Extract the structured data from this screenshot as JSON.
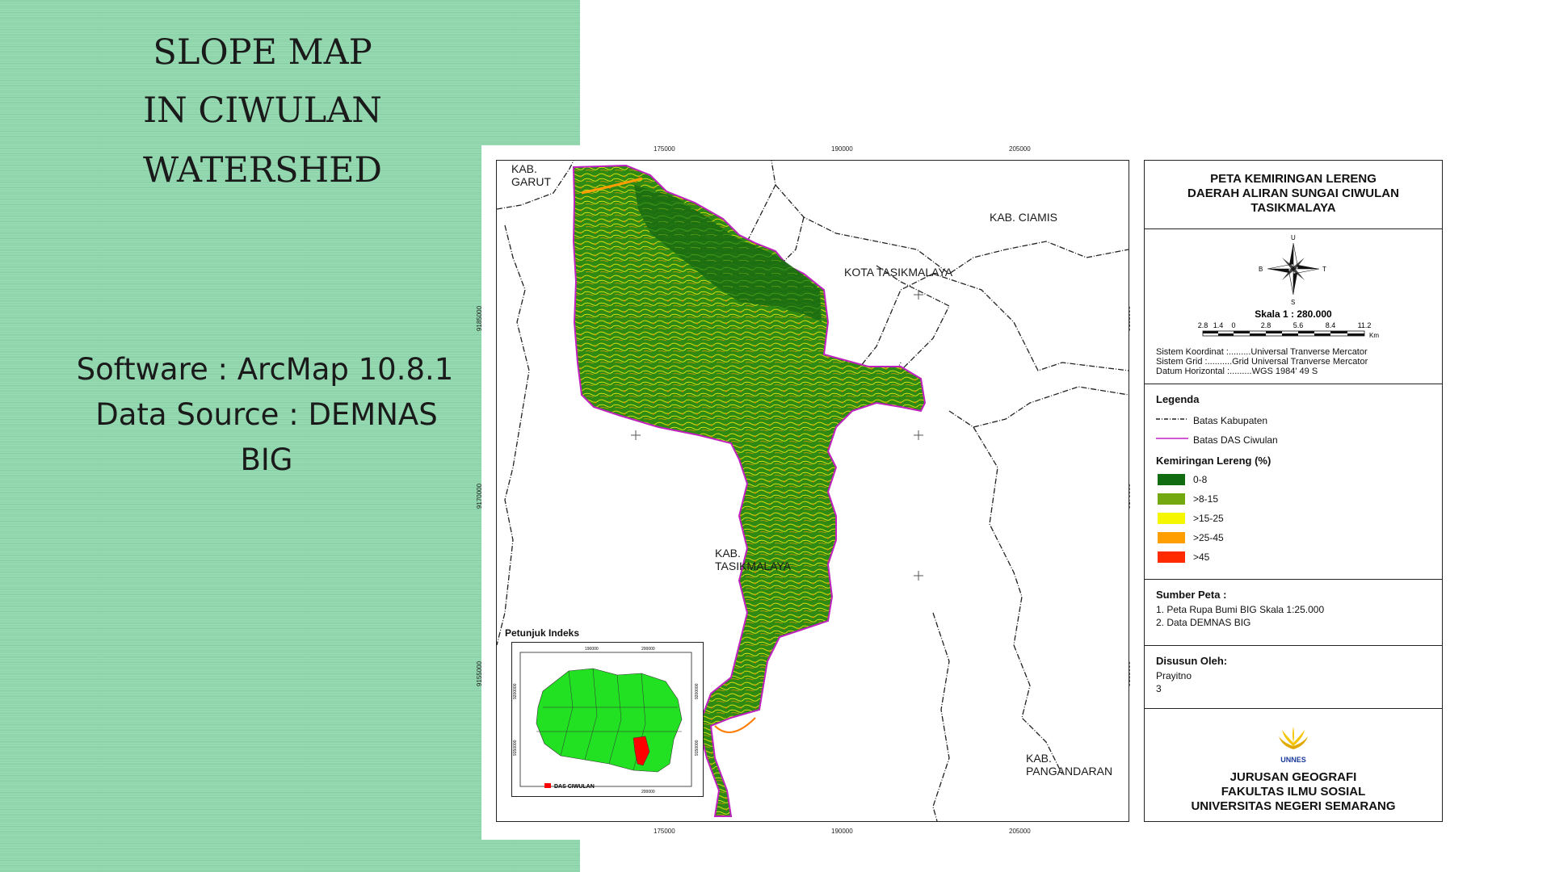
{
  "slide": {
    "title_line1": "SLOPE MAP",
    "title_line2": "IN CIWULAN",
    "title_line3": "WATERSHED",
    "software": "Software : ArcMap 10.8.1",
    "data_source_line1": "Data Source : DEMNAS",
    "data_source_line2": "BIG",
    "panel_color": "#8fd6ad"
  },
  "map": {
    "x_ticks": [
      "175000",
      "190000",
      "205000"
    ],
    "y_ticks": [
      "9185000",
      "9170000",
      "9155000"
    ],
    "places": {
      "garut": [
        "KAB.",
        "GARUT"
      ],
      "ciamis": "KAB. CIAMIS",
      "kota_tasik": "KOTA TASIKMALAYA",
      "kab_tasik": [
        "KAB.",
        "TASIKMALAYA"
      ],
      "pangandaran": [
        "KAB.",
        "PANGANDARAN"
      ]
    },
    "index": {
      "title": "Petunjuk Indeks",
      "x_ticks": [
        "190000",
        "200000"
      ],
      "x_ticks_bottom": [
        "200000"
      ],
      "y_ticks": [
        "9200000",
        "9150000"
      ],
      "y_ticks_right": [
        "9200000",
        "9150000"
      ],
      "legend": "DAS CIWULAN",
      "province_color": "#22e022",
      "das_color": "#ff0000"
    }
  },
  "panel": {
    "title_lines": [
      "PETA KEMIRINGAN LERENG",
      "DAERAH ALIRAN SUNGAI CIWULAN",
      "TASIKMALAYA"
    ],
    "compass": {
      "n": "U",
      "s": "S",
      "e": "T",
      "w": "B"
    },
    "scale_label": "Skala 1 : 280.000",
    "scale_ticks": [
      "2.8",
      "1.4",
      "0",
      "2.8",
      "5.6",
      "8.4",
      "11.2"
    ],
    "scale_unit": "Km",
    "system_lines": [
      "Sistem Koordinat :.........Universal Tranverse Mercator",
      "Sistem Grid         :..........Grid Universal Tranverse Mercator",
      "Datum Horizontal :.........WGS 1984' 49 S"
    ],
    "legend_title": "Legenda",
    "legend_lines": [
      "Batas Kabupaten",
      "Batas DAS Ciwulan"
    ],
    "slope_title": "Kemiringan Lereng (%)",
    "slope_classes": [
      {
        "label": "0-8",
        "color": "#116b11"
      },
      {
        "label": ">8-15",
        "color": "#73a80e"
      },
      {
        "label": ">15-25",
        "color": "#f6f600"
      },
      {
        "label": ">25-45",
        "color": "#ff9e00"
      },
      {
        "label": ">45",
        "color": "#ff2a00"
      }
    ],
    "source_title": "Sumber Peta :",
    "source_lines": [
      "1. Peta Rupa Bumi BIG Skala 1:25.000",
      "2. Data DEMNAS BIG"
    ],
    "author_title": "Disusun Oleh:",
    "author_lines": [
      "Prayitno",
      "3"
    ],
    "logo_text": "UNNES",
    "institution_lines": [
      "JURUSAN GEOGRAFI",
      "FAKULTAS ILMU SOSIAL",
      "UNIVERSITAS NEGERI SEMARANG"
    ]
  }
}
